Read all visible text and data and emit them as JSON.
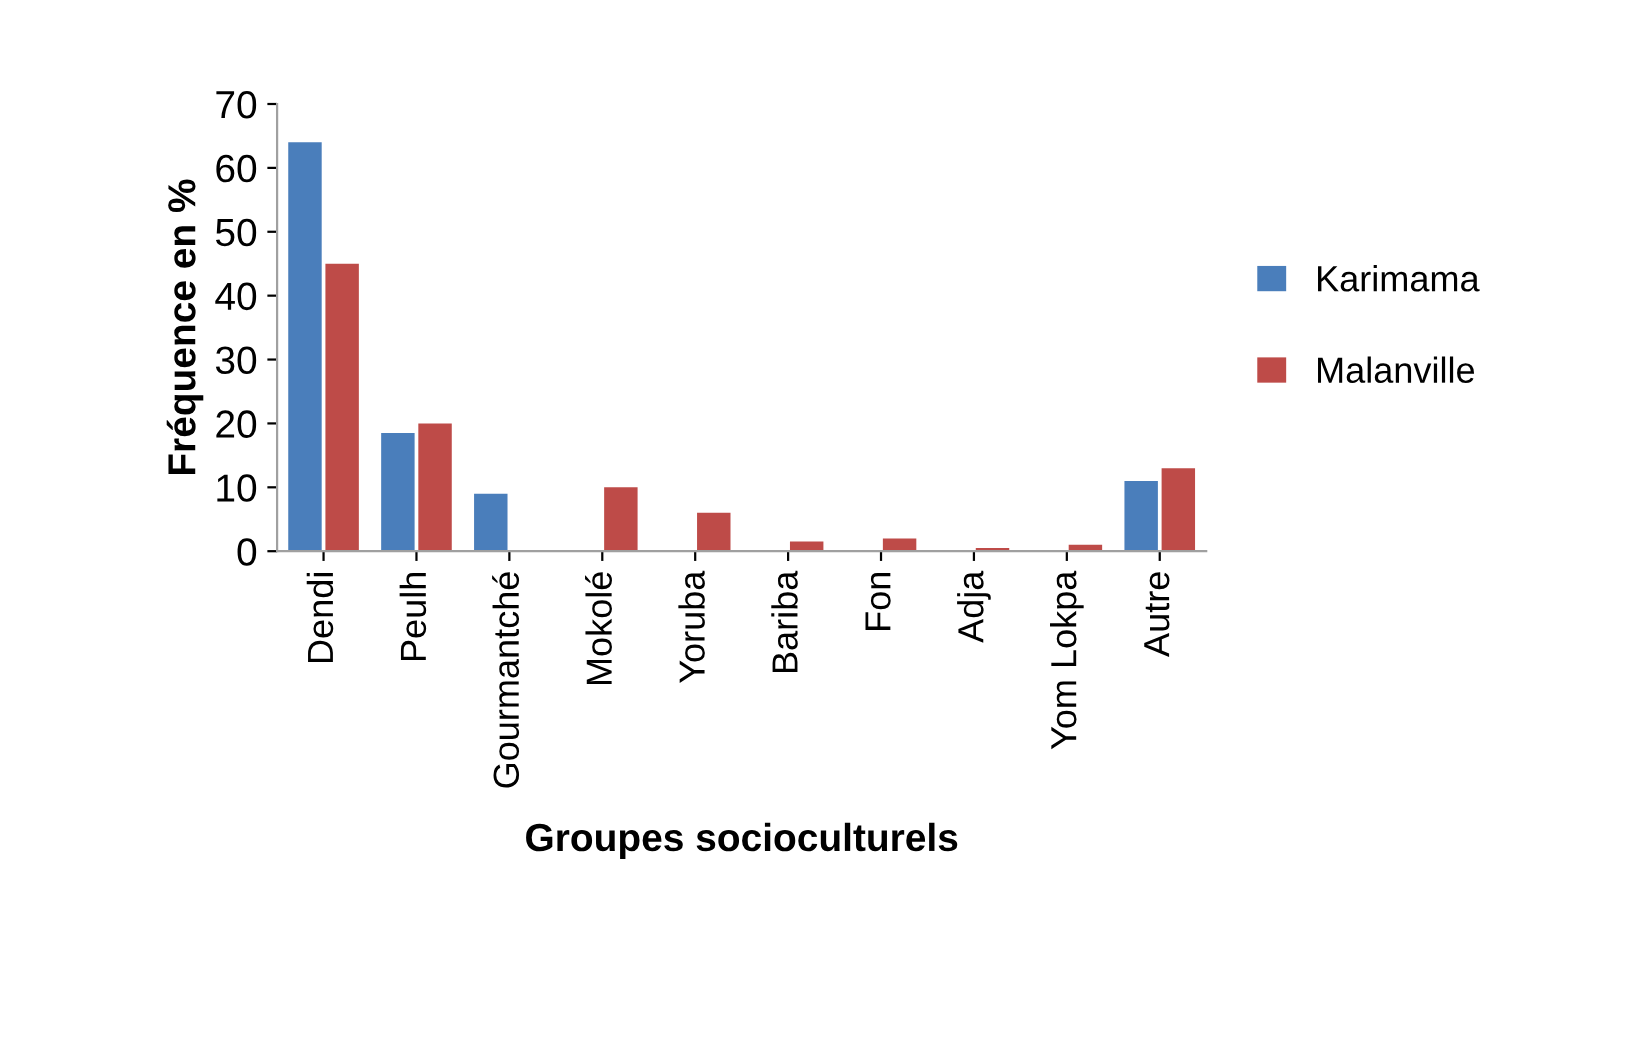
{
  "chart_data": {
    "type": "bar",
    "xlabel": "Groupes socioculturels",
    "ylabel": "Fréquence en %",
    "categories": [
      "Dendi",
      "Peulh",
      "Gourmantché",
      "Mokolé",
      "Yoruba",
      "Bariba",
      "Fon",
      "Adja",
      "Yom Lokpa",
      "Autre"
    ],
    "series": [
      {
        "name": "Karimama",
        "color": "#4a7ebb",
        "values": [
          64,
          18.5,
          9,
          0,
          0,
          0,
          0,
          0,
          0,
          11
        ]
      },
      {
        "name": "Malanville",
        "color": "#be4b48",
        "values": [
          45,
          20,
          0,
          10,
          6,
          1.5,
          2,
          0.5,
          1,
          13
        ]
      }
    ],
    "ylim": [
      0,
      70
    ],
    "yticks": [
      0,
      10,
      20,
      30,
      40,
      50,
      60,
      70
    ],
    "grid": false,
    "legend": "right"
  }
}
